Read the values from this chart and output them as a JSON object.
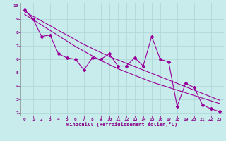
{
  "xlabel": "Windchill (Refroidissement éolien,°C)",
  "bg_color": "#c8ecec",
  "grid_color": "#b0d8d8",
  "line_color": "#990099",
  "x_data": [
    0,
    1,
    2,
    3,
    4,
    5,
    6,
    7,
    8,
    9,
    10,
    11,
    12,
    13,
    14,
    15,
    16,
    17,
    18,
    19,
    20,
    21,
    22,
    23
  ],
  "y_main": [
    9.7,
    9.0,
    7.7,
    7.8,
    6.4,
    6.1,
    6.0,
    5.2,
    6.1,
    6.0,
    6.4,
    5.5,
    5.5,
    6.1,
    5.5,
    7.7,
    6.0,
    5.8,
    2.5,
    4.2,
    3.9,
    2.6,
    2.3,
    2.1
  ],
  "y_trend1": [
    9.35,
    8.95,
    8.55,
    8.15,
    7.75,
    7.35,
    6.95,
    6.6,
    6.25,
    5.9,
    5.6,
    5.3,
    5.05,
    4.8,
    4.55,
    4.3,
    4.1,
    3.9,
    3.7,
    3.5,
    3.3,
    3.1,
    2.9,
    2.7
  ],
  "y_trend2": [
    9.55,
    9.2,
    8.85,
    8.5,
    8.15,
    7.8,
    7.45,
    7.1,
    6.8,
    6.5,
    6.2,
    5.95,
    5.7,
    5.45,
    5.2,
    4.95,
    4.7,
    4.45,
    4.2,
    3.95,
    3.7,
    3.45,
    3.2,
    2.95
  ],
  "ylim": [
    2,
    10
  ],
  "xlim": [
    0,
    23
  ],
  "yticks": [
    2,
    3,
    4,
    5,
    6,
    7,
    8,
    9,
    10
  ],
  "xticks": [
    0,
    1,
    2,
    3,
    4,
    5,
    6,
    7,
    8,
    9,
    10,
    11,
    12,
    13,
    14,
    15,
    16,
    17,
    18,
    19,
    20,
    21,
    22,
    23
  ]
}
